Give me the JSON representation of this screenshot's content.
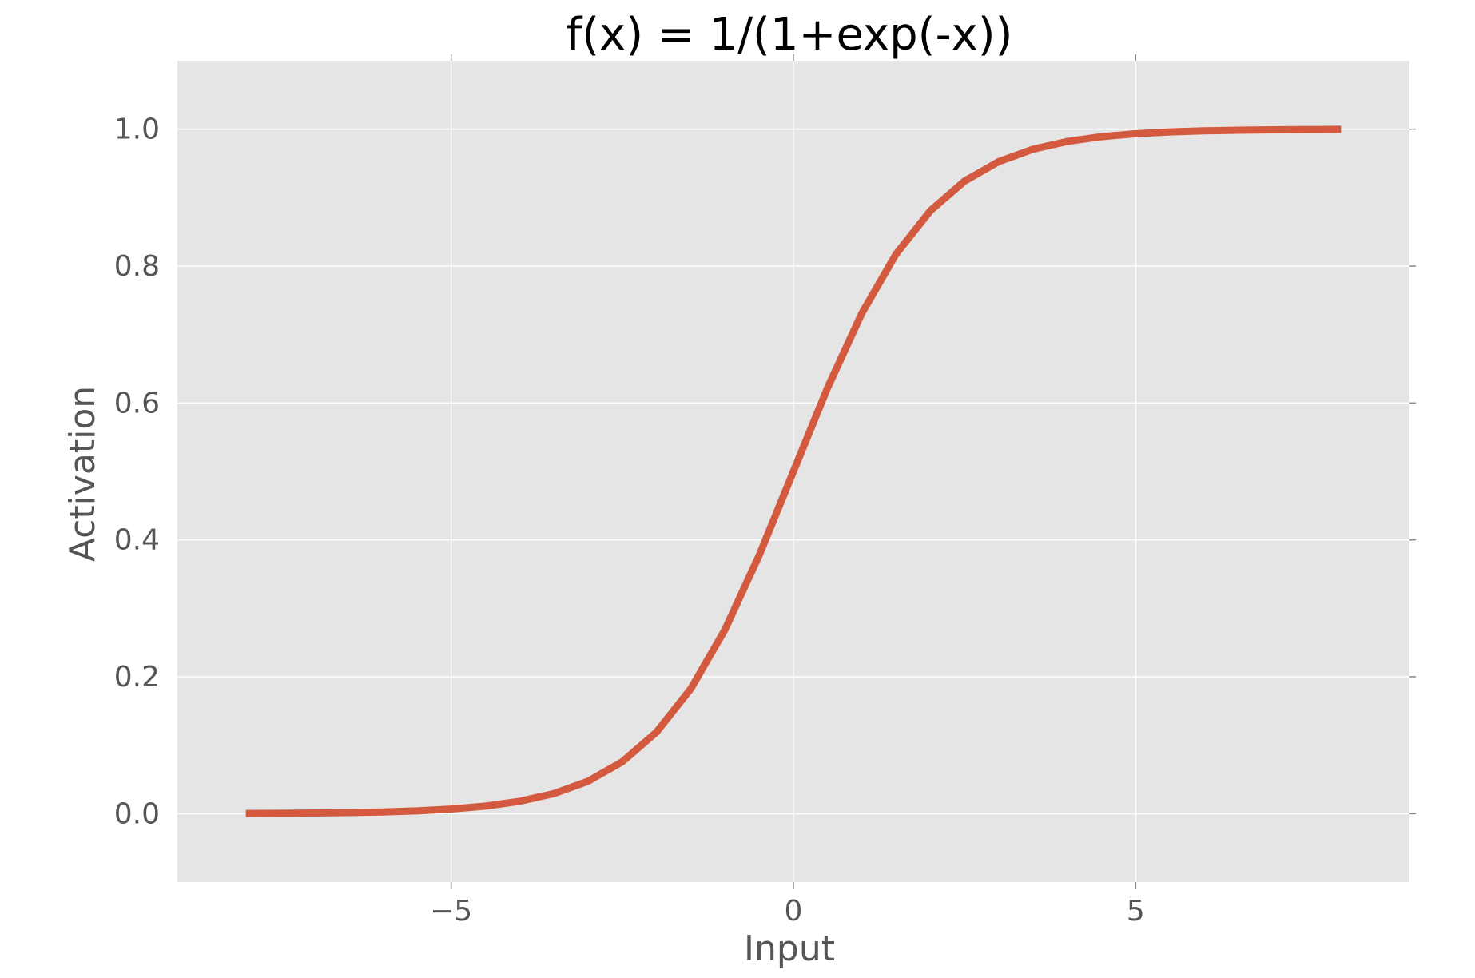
{
  "chart_data": {
    "type": "line",
    "title": "f(x) = 1/(1+exp(-x))",
    "xlabel": "Input",
    "ylabel": "Activation",
    "xlim": [
      -9,
      9
    ],
    "ylim": [
      -0.1,
      1.1
    ],
    "xticks": [
      {
        "value": -5,
        "label": "−5"
      },
      {
        "value": 0,
        "label": "0"
      },
      {
        "value": 5,
        "label": "5"
      }
    ],
    "yticks": [
      {
        "value": 0.0,
        "label": "0.0"
      },
      {
        "value": 0.2,
        "label": "0.2"
      },
      {
        "value": 0.4,
        "label": "0.4"
      },
      {
        "value": 0.6,
        "label": "0.6"
      },
      {
        "value": 0.8,
        "label": "0.8"
      },
      {
        "value": 1.0,
        "label": "1.0"
      }
    ],
    "grid": true,
    "series": [
      {
        "color": "#d35a3f",
        "x": [
          -8,
          -7.5,
          -7,
          -6.5,
          -6,
          -5.5,
          -5,
          -4.5,
          -4,
          -3.5,
          -3,
          -2.5,
          -2,
          -1.5,
          -1,
          -0.5,
          0,
          0.5,
          1,
          1.5,
          2,
          2.5,
          3,
          3.5,
          4,
          4.5,
          5,
          5.5,
          6,
          6.5,
          7,
          7.5,
          8
        ],
        "y": [
          0.0003,
          0.0006,
          0.0009,
          0.0015,
          0.0025,
          0.0041,
          0.0067,
          0.011,
          0.018,
          0.0293,
          0.0474,
          0.0759,
          0.1192,
          0.1824,
          0.2689,
          0.3775,
          0.5,
          0.6225,
          0.7311,
          0.8176,
          0.8808,
          0.9241,
          0.9526,
          0.9707,
          0.982,
          0.989,
          0.9933,
          0.9959,
          0.9975,
          0.9985,
          0.9991,
          0.9994,
          0.9997
        ]
      }
    ],
    "colors": {
      "plot_background": "#e5e5e5",
      "grid": "#ffffff",
      "tick_text": "#555555",
      "title_text": "#000000"
    }
  }
}
